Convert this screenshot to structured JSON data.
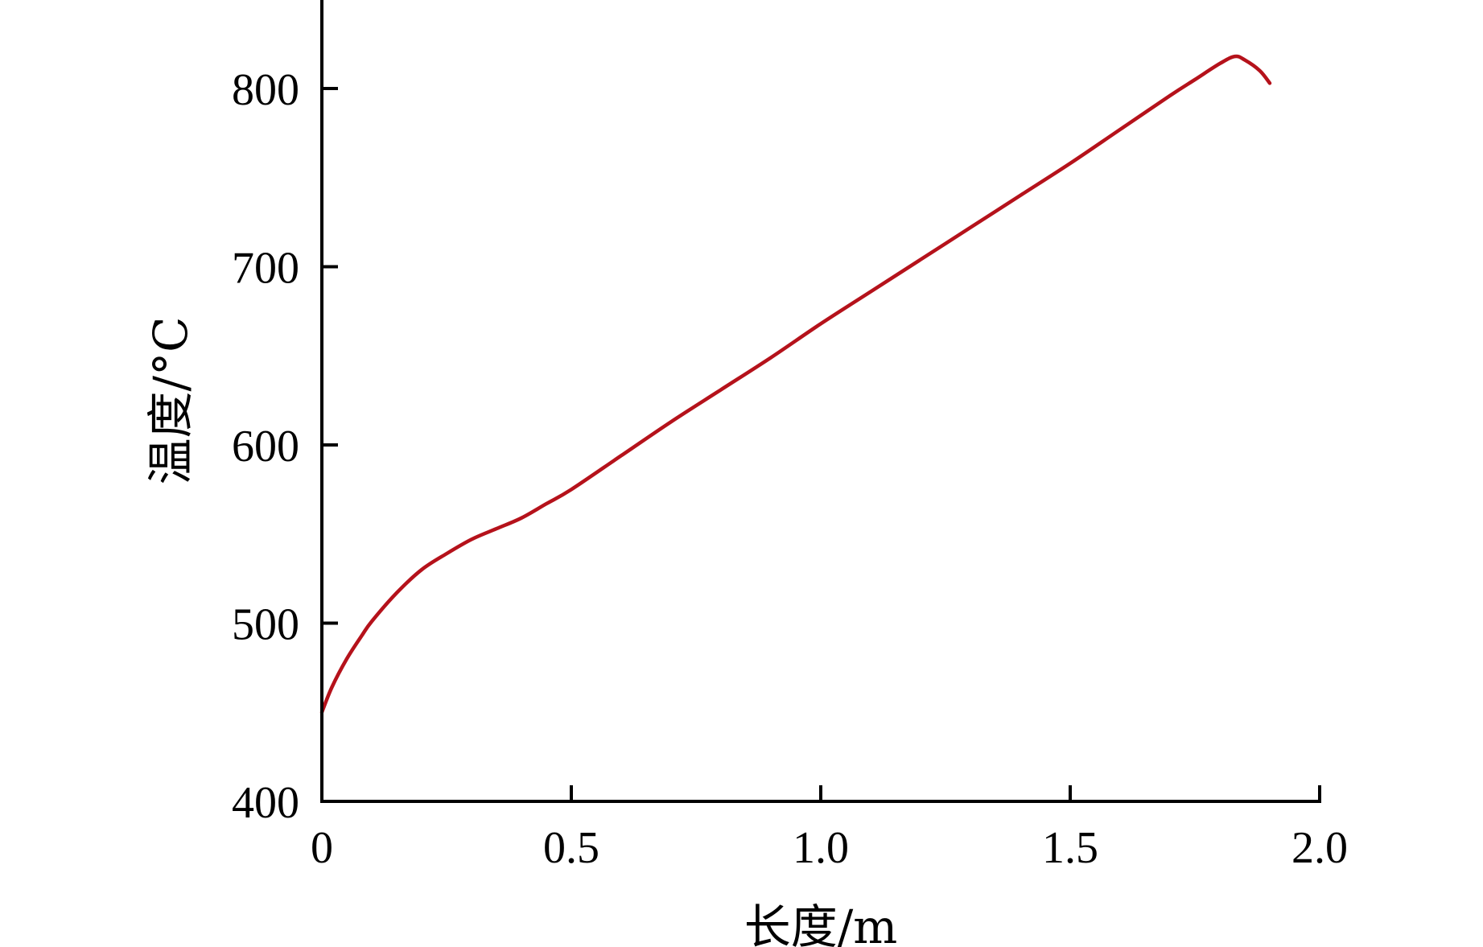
{
  "chart_data": {
    "type": "line",
    "title": "",
    "xlabel": "长度/m",
    "ylabel": "温度/°C",
    "xlim": [
      0,
      2.0
    ],
    "ylim": [
      400,
      850
    ],
    "grid": false,
    "x_ticks": [
      0,
      0.5,
      1.0,
      1.5,
      2.0
    ],
    "x_tick_labels": [
      "0",
      "0.5",
      "1.0",
      "1.5",
      "2.0"
    ],
    "y_ticks": [
      400,
      500,
      600,
      700,
      800
    ],
    "y_tick_labels": [
      "400",
      "500",
      "600",
      "700",
      "800"
    ],
    "series": [
      {
        "color": "#b5121b",
        "x": [
          0,
          0.02,
          0.05,
          0.08,
          0.1,
          0.15,
          0.2,
          0.25,
          0.3,
          0.35,
          0.4,
          0.45,
          0.5,
          0.6,
          0.7,
          0.8,
          0.9,
          1.0,
          1.1,
          1.2,
          1.3,
          1.4,
          1.5,
          1.6,
          1.7,
          1.75,
          1.8,
          1.83,
          1.85,
          1.88,
          1.9
        ],
        "y": [
          450,
          464,
          480,
          493,
          501,
          517,
          530,
          539,
          547,
          553,
          559,
          567,
          575,
          594,
          613,
          631,
          649,
          668,
          686,
          704,
          722,
          740,
          758,
          777,
          796,
          805,
          814,
          818,
          816,
          810,
          803
        ]
      }
    ]
  }
}
